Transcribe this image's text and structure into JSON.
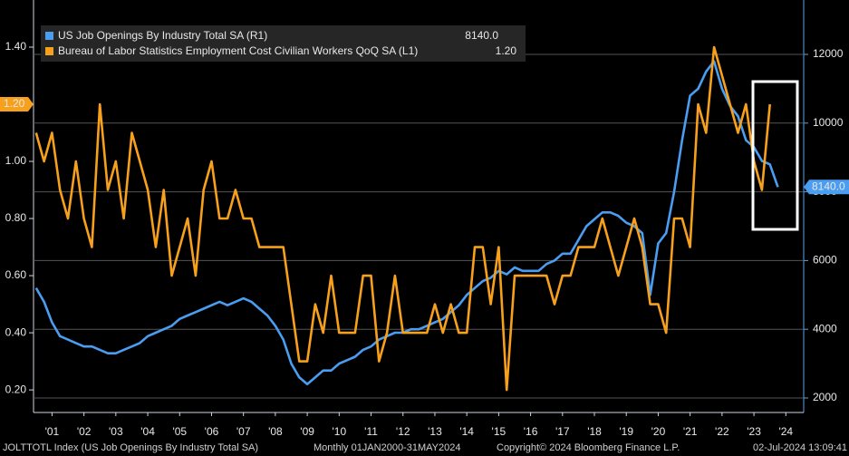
{
  "chart_data": {
    "type": "line",
    "x": [
      2001,
      2001.25,
      2001.5,
      2001.75,
      2002,
      2002.25,
      2002.5,
      2002.75,
      2003,
      2003.25,
      2003.5,
      2003.75,
      2004,
      2004.25,
      2004.5,
      2004.75,
      2005,
      2005.25,
      2005.5,
      2005.75,
      2006,
      2006.25,
      2006.5,
      2006.75,
      2007,
      2007.25,
      2007.5,
      2007.75,
      2008,
      2008.25,
      2008.5,
      2008.75,
      2009,
      2009.25,
      2009.5,
      2009.75,
      2010,
      2010.25,
      2010.5,
      2010.75,
      2011,
      2011.25,
      2011.5,
      2011.75,
      2012,
      2012.25,
      2012.5,
      2012.75,
      2013,
      2013.25,
      2013.5,
      2013.75,
      2014,
      2014.25,
      2014.5,
      2014.75,
      2015,
      2015.25,
      2015.5,
      2015.75,
      2016,
      2016.25,
      2016.5,
      2016.75,
      2017,
      2017.25,
      2017.5,
      2017.75,
      2018,
      2018.25,
      2018.5,
      2018.75,
      2019,
      2019.25,
      2019.5,
      2019.75,
      2020,
      2020.25,
      2020.5,
      2020.75,
      2021,
      2021.25,
      2021.5,
      2021.75,
      2022,
      2022.25,
      2022.5,
      2022.75,
      2023,
      2023.25,
      2023.5,
      2023.75,
      2024,
      2024.25
    ],
    "series": [
      {
        "name": "US Job Openings By Industry Total SA  (R1)",
        "color": "#4a9df0",
        "axis": "y2",
        "last_value_label": "8140.0",
        "values": [
          5200,
          4800,
          4200,
          3800,
          3700,
          3600,
          3500,
          3500,
          3400,
          3300,
          3300,
          3400,
          3500,
          3600,
          3800,
          3900,
          4000,
          4100,
          4300,
          4400,
          4500,
          4600,
          4700,
          4800,
          4700,
          4800,
          4900,
          4800,
          4600,
          4400,
          4100,
          3700,
          3000,
          2600,
          2400,
          2600,
          2800,
          2800,
          3000,
          3100,
          3200,
          3400,
          3500,
          3700,
          3800,
          3900,
          3900,
          4000,
          4000,
          4100,
          4200,
          4300,
          4500,
          4700,
          5000,
          5200,
          5400,
          5500,
          5700,
          5600,
          5800,
          5700,
          5700,
          5700,
          5900,
          6000,
          6200,
          6200,
          6600,
          7000,
          7200,
          7400,
          7400,
          7300,
          7100,
          7000,
          6800,
          5000,
          6500,
          6800,
          8000,
          9500,
          10800,
          11000,
          11500,
          11800,
          11000,
          10500,
          10200,
          9500,
          9300,
          8900,
          8800,
          8140
        ]
      },
      {
        "name": "Bureau of Labor Statistics Employment Cost Civilian Workers QoQ SA  (L1)",
        "color": "#f7a01c",
        "axis": "y",
        "last_value_label": "1.20",
        "values": [
          1.1,
          1.0,
          1.1,
          0.9,
          0.8,
          1.0,
          0.8,
          0.7,
          1.2,
          0.9,
          1.0,
          0.8,
          1.1,
          1.0,
          0.9,
          0.7,
          0.9,
          0.6,
          0.7,
          0.8,
          0.6,
          0.9,
          1.0,
          0.8,
          0.8,
          0.9,
          0.8,
          0.8,
          0.7,
          0.7,
          0.7,
          0.7,
          0.5,
          0.3,
          0.3,
          0.5,
          0.4,
          0.6,
          0.4,
          0.4,
          0.4,
          0.6,
          0.6,
          0.3,
          0.4,
          0.6,
          0.4,
          0.4,
          0.4,
          0.4,
          0.5,
          0.4,
          0.5,
          0.4,
          0.4,
          0.7,
          0.7,
          0.5,
          0.7,
          0.2,
          0.6,
          0.6,
          0.6,
          0.6,
          0.6,
          0.5,
          0.6,
          0.6,
          0.7,
          0.7,
          0.7,
          0.8,
          0.7,
          0.6,
          0.7,
          0.8,
          0.7,
          0.5,
          0.5,
          0.4,
          0.8,
          0.8,
          0.7,
          1.2,
          1.1,
          1.4,
          1.3,
          1.2,
          1.1,
          1.2,
          1.0,
          0.9,
          1.2,
          null
        ]
      }
    ],
    "xlim": [
      2000.92,
      2025.06
    ],
    "xticks": [
      {
        "value": 2001.5,
        "label": "'01"
      },
      {
        "value": 2002.5,
        "label": "'02"
      },
      {
        "value": 2003.5,
        "label": "'03"
      },
      {
        "value": 2004.5,
        "label": "'04"
      },
      {
        "value": 2005.5,
        "label": "'05"
      },
      {
        "value": 2006.5,
        "label": "'06"
      },
      {
        "value": 2007.5,
        "label": "'07"
      },
      {
        "value": 2008.5,
        "label": "'08"
      },
      {
        "value": 2009.5,
        "label": "'09"
      },
      {
        "value": 2010.5,
        "label": "'10"
      },
      {
        "value": 2011.5,
        "label": "'11"
      },
      {
        "value": 2012.5,
        "label": "'12"
      },
      {
        "value": 2013.5,
        "label": "'13"
      },
      {
        "value": 2014.5,
        "label": "'14"
      },
      {
        "value": 2015.5,
        "label": "'15"
      },
      {
        "value": 2016.5,
        "label": "'16"
      },
      {
        "value": 2017.5,
        "label": "'17"
      },
      {
        "value": 2018.5,
        "label": "'18"
      },
      {
        "value": 2019.5,
        "label": "'19"
      },
      {
        "value": 2020.5,
        "label": "'20"
      },
      {
        "value": 2021.5,
        "label": "'21"
      },
      {
        "value": 2022.5,
        "label": "'22"
      },
      {
        "value": 2023.5,
        "label": "'23"
      },
      {
        "value": 2024.5,
        "label": "'24"
      }
    ],
    "ylim": [
      0.121,
      1.565
    ],
    "yticks": [
      {
        "value": 0.2,
        "label": "0.20"
      },
      {
        "value": 0.4,
        "label": "0.40"
      },
      {
        "value": 0.6,
        "label": "0.60"
      },
      {
        "value": 0.8,
        "label": "0.80"
      },
      {
        "value": 1.0,
        "label": "1.00"
      },
      {
        "value": 1.2,
        "label": "1.20"
      },
      {
        "value": 1.4,
        "label": "1.40"
      }
    ],
    "y2lim": [
      1578,
      13583
    ],
    "y2ticks": [
      2000,
      4000,
      6000,
      8000,
      10000,
      12000
    ],
    "grid": true,
    "footer": {
      "source": "JOLTTOTL Index (US Job Openings By Industry Total SA)",
      "range": "Monthly 01JAN2000-31MAY2024",
      "copyright": "Copyright© 2024 Bloomberg Finance L.P.",
      "timestamp": "02-Jul-2024 13:09:41"
    }
  }
}
